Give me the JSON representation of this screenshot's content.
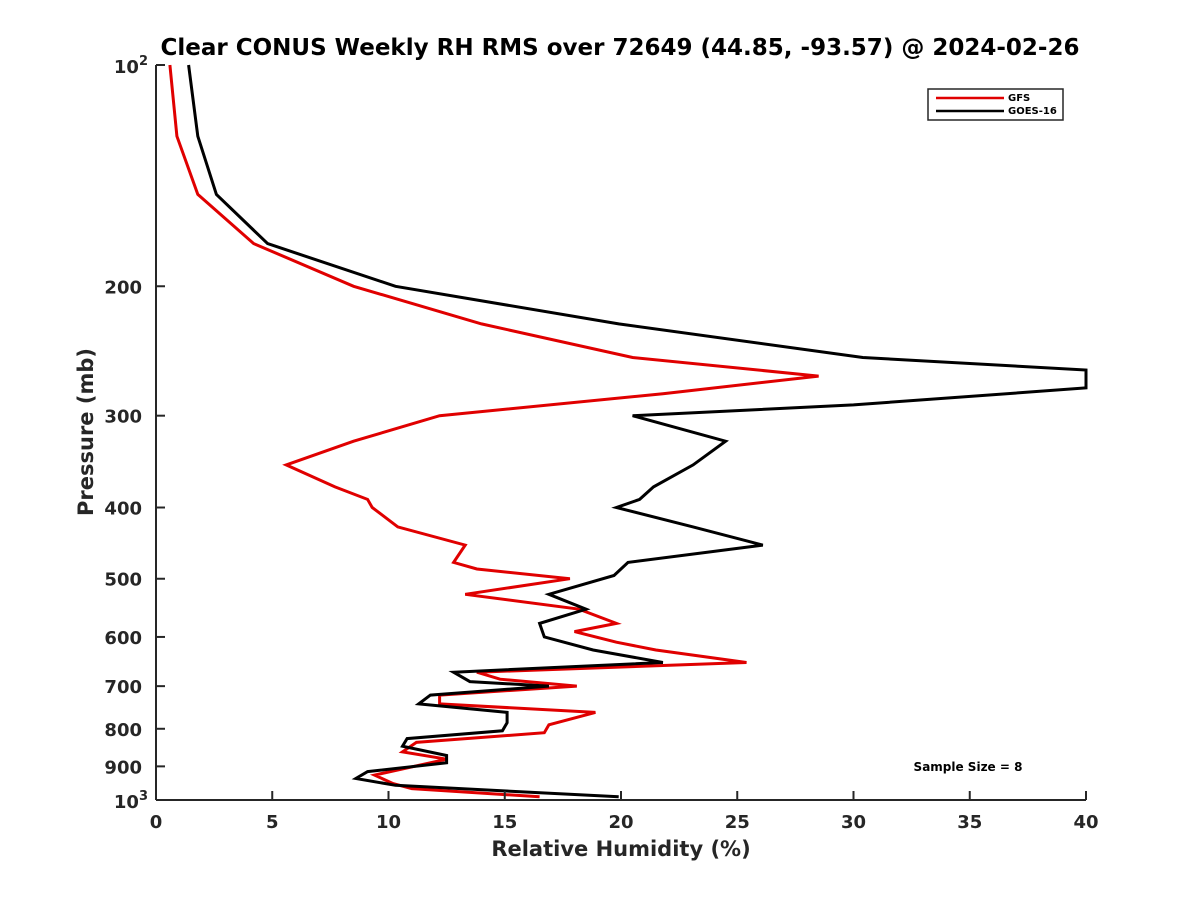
{
  "chart_data": {
    "type": "line",
    "title": "Clear CONUS Weekly RH RMS over 72649 (44.85, -93.57) @ 2024-02-26",
    "xlabel": "Relative Humidity (%)",
    "ylabel": "Pressure (mb)",
    "xlim": [
      0,
      40
    ],
    "ylim": [
      100,
      1000
    ],
    "y_scale": "log",
    "y_reversed": true,
    "grid": false,
    "legend_position": "top-right",
    "annotation": "Sample Size = 8",
    "x_ticks": [
      0,
      5,
      10,
      15,
      20,
      25,
      30,
      35,
      40
    ],
    "x_tick_labels": [
      "0",
      "5",
      "10",
      "15",
      "20",
      "25",
      "30",
      "35",
      "40"
    ],
    "y_ticks": [
      200,
      300,
      400,
      500,
      600,
      700,
      800,
      900
    ],
    "y_tick_labels": [
      "200",
      "300",
      "400",
      "500",
      "600",
      "700",
      "800",
      "900"
    ],
    "y_decade_labels": [
      {
        "value": 100,
        "base": "10",
        "exp": "2"
      },
      {
        "value": 1000,
        "base": "10",
        "exp": "3"
      }
    ],
    "series": [
      {
        "name": "GFS",
        "color": "#e00000",
        "points": [
          [
            0.6,
            100
          ],
          [
            0.9,
            125
          ],
          [
            1.8,
            150
          ],
          [
            4.2,
            175
          ],
          [
            8.5,
            200
          ],
          [
            14,
            225
          ],
          [
            20.5,
            250
          ],
          [
            28.5,
            265
          ],
          [
            21.8,
            280
          ],
          [
            12.2,
            300
          ],
          [
            8.5,
            325
          ],
          [
            5.6,
            350
          ],
          [
            7.7,
            375
          ],
          [
            9.1,
            390
          ],
          [
            9.3,
            400
          ],
          [
            10.4,
            425
          ],
          [
            13.3,
            450
          ],
          [
            12.8,
            475
          ],
          [
            13.8,
            485
          ],
          [
            17.8,
            500
          ],
          [
            13.3,
            525
          ],
          [
            18.2,
            550
          ],
          [
            19.8,
            575
          ],
          [
            18.0,
            590
          ],
          [
            19.8,
            610
          ],
          [
            21.5,
            625
          ],
          [
            25.4,
            650
          ],
          [
            13.8,
            670
          ],
          [
            14.8,
            685
          ],
          [
            18.1,
            700
          ],
          [
            12.2,
            720
          ],
          [
            12.2,
            740
          ],
          [
            18.9,
            760
          ],
          [
            16.9,
            790
          ],
          [
            16.7,
            810
          ],
          [
            11.2,
            835
          ],
          [
            10.6,
            860
          ],
          [
            12.5,
            880
          ],
          [
            9.4,
            925
          ],
          [
            10.2,
            950
          ],
          [
            11.0,
            965
          ],
          [
            16.5,
            990
          ]
        ]
      },
      {
        "name": "GOES-16",
        "color": "#000000",
        "points": [
          [
            1.4,
            100
          ],
          [
            1.8,
            125
          ],
          [
            2.6,
            150
          ],
          [
            4.8,
            175
          ],
          [
            10.3,
            200
          ],
          [
            19.9,
            225
          ],
          [
            30.4,
            250
          ],
          [
            40.0,
            260
          ],
          [
            40.0,
            275
          ],
          [
            30.0,
            290
          ],
          [
            20.5,
            300
          ],
          [
            24.5,
            325
          ],
          [
            23.1,
            350
          ],
          [
            21.4,
            375
          ],
          [
            20.8,
            390
          ],
          [
            19.8,
            400
          ],
          [
            23.1,
            425
          ],
          [
            26.1,
            450
          ],
          [
            20.3,
            475
          ],
          [
            19.7,
            495
          ],
          [
            16.9,
            525
          ],
          [
            18.5,
            550
          ],
          [
            16.5,
            575
          ],
          [
            16.7,
            600
          ],
          [
            18.8,
            625
          ],
          [
            21.8,
            650
          ],
          [
            12.8,
            670
          ],
          [
            13.5,
            690
          ],
          [
            16.9,
            700
          ],
          [
            11.8,
            720
          ],
          [
            11.3,
            740
          ],
          [
            15.1,
            760
          ],
          [
            15.1,
            785
          ],
          [
            14.9,
            805
          ],
          [
            10.8,
            825
          ],
          [
            10.6,
            845
          ],
          [
            12.5,
            870
          ],
          [
            12.5,
            890
          ],
          [
            9.1,
            915
          ],
          [
            8.6,
            935
          ],
          [
            10.3,
            955
          ],
          [
            19.9,
            990
          ]
        ]
      }
    ]
  }
}
